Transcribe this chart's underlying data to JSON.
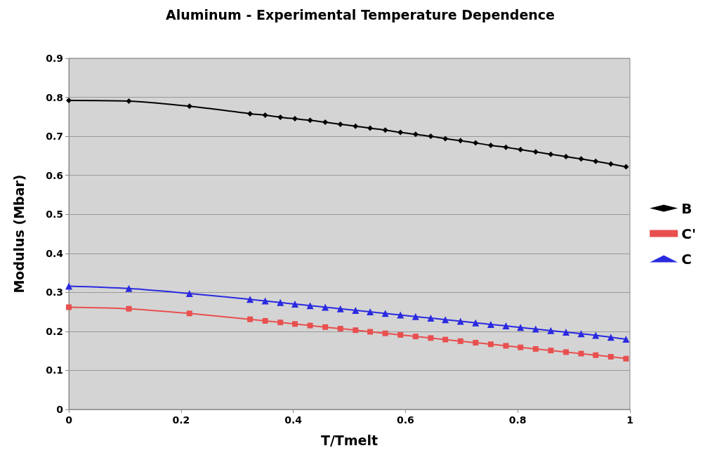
{
  "chart_data": {
    "type": "line",
    "title": "Aluminum - Experimental Temperature Dependence",
    "xlabel": "T/Tmelt",
    "ylabel": "Modulus (Mbar)",
    "x": [
      0,
      0.107,
      0.215,
      0.323,
      0.35,
      0.377,
      0.403,
      0.43,
      0.457,
      0.484,
      0.511,
      0.537,
      0.564,
      0.591,
      0.618,
      0.645,
      0.671,
      0.698,
      0.725,
      0.752,
      0.779,
      0.805,
      0.832,
      0.859,
      0.886,
      0.913,
      0.939,
      0.966,
      0.993
    ],
    "series": [
      {
        "name": "B",
        "color": "#000000",
        "marker": "diamond",
        "values": [
          0.792,
          0.79,
          0.777,
          0.758,
          0.754,
          0.749,
          0.745,
          0.741,
          0.736,
          0.731,
          0.726,
          0.721,
          0.716,
          0.71,
          0.705,
          0.7,
          0.694,
          0.689,
          0.683,
          0.677,
          0.672,
          0.666,
          0.66,
          0.654,
          0.648,
          0.642,
          0.636,
          0.629,
          0.622
        ]
      },
      {
        "name": "C'",
        "color": "#e8504f",
        "marker": "square",
        "values": [
          0.262,
          0.258,
          0.246,
          0.231,
          0.227,
          0.223,
          0.219,
          0.215,
          0.211,
          0.207,
          0.203,
          0.199,
          0.195,
          0.191,
          0.187,
          0.183,
          0.179,
          0.175,
          0.171,
          0.167,
          0.163,
          0.159,
          0.155,
          0.151,
          0.147,
          0.143,
          0.139,
          0.135,
          0.13
        ]
      },
      {
        "name": "C",
        "color": "#2a2ae0",
        "marker": "triangle",
        "values": [
          0.316,
          0.31,
          0.297,
          0.282,
          0.278,
          0.274,
          0.27,
          0.266,
          0.262,
          0.258,
          0.254,
          0.25,
          0.246,
          0.242,
          0.238,
          0.234,
          0.23,
          0.226,
          0.222,
          0.218,
          0.214,
          0.21,
          0.206,
          0.202,
          0.198,
          0.194,
          0.19,
          0.185,
          0.18
        ]
      }
    ],
    "xlim": [
      0,
      1
    ],
    "xticks": [
      0,
      0.2,
      0.4,
      0.6,
      0.8,
      1
    ],
    "ylim": [
      0,
      0.9
    ],
    "yticks": [
      0,
      0.1,
      0.2,
      0.3,
      0.4,
      0.5,
      0.6,
      0.7,
      0.8,
      0.9
    ],
    "grid": "y",
    "legend": "right",
    "line_style": "solid"
  }
}
